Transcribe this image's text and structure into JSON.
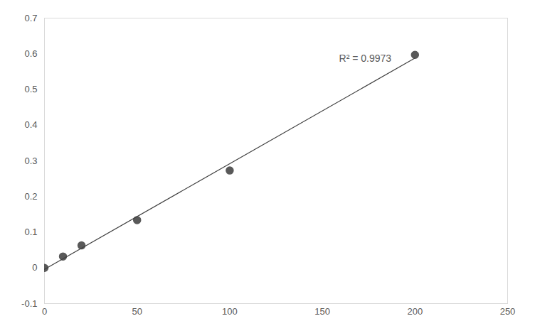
{
  "chart_data": {
    "type": "scatter",
    "series": [
      {
        "type": "scatter",
        "marker": "circle",
        "color": "#595959",
        "x": [
          0,
          10,
          20,
          50,
          100,
          200
        ],
        "values": [
          0,
          0.032,
          0.063,
          0.134,
          0.273,
          0.597
        ]
      },
      {
        "type": "line",
        "line_style": "solid",
        "color": "#404040",
        "x": [
          0,
          200
        ],
        "values": [
          -0.004,
          0.588
        ]
      }
    ],
    "annotations": [
      {
        "text": "R² = 0.9973",
        "x": 159,
        "y": 0.586
      }
    ],
    "xlim": [
      0,
      250
    ],
    "xticks": [
      0,
      50,
      100,
      150,
      200,
      250
    ],
    "ylim": [
      -0.1,
      0.7
    ],
    "yticks": [
      -0.1,
      0,
      0.1,
      0.2,
      0.3,
      0.4,
      0.5,
      0.6,
      0.7
    ],
    "grid": false
  }
}
